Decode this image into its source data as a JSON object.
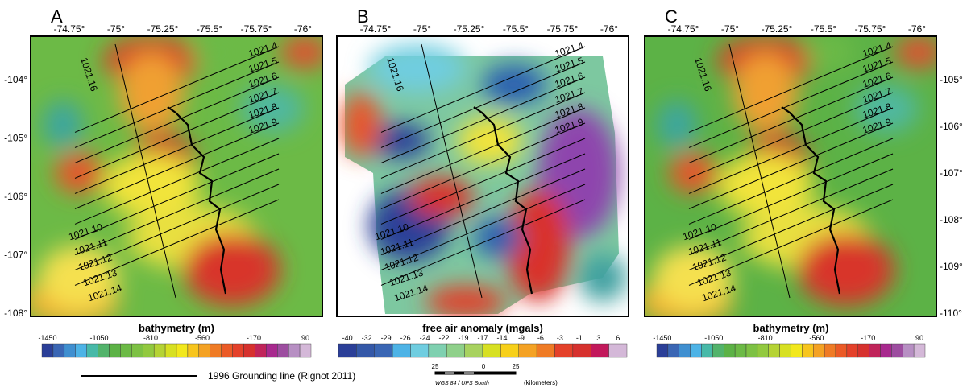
{
  "panels": [
    {
      "letter": "A",
      "lon_labels": [
        "-74.75°",
        "-75°",
        "-75.25°",
        "-75.5°",
        "-75.75°",
        "-76°"
      ],
      "lat_labels": [
        "-104°",
        "-105°",
        "-106°",
        "-107°",
        "-108°"
      ],
      "line_labels": [
        "1021.4",
        "1021.5",
        "1021.6",
        "1021.7",
        "1021.8",
        "1021.9",
        "1021.10",
        "1021.11",
        "1021.12",
        "1021.13",
        "1021.14"
      ],
      "tie_label": "1021.16",
      "colorbar": {
        "title": "bathymetry (m)",
        "ticks": [
          -1450,
          -1050,
          -810,
          -560,
          -170,
          90
        ],
        "colors": [
          "#2b3f98",
          "#3a66b4",
          "#3f8fd0",
          "#4db3e6",
          "#47b9a8",
          "#52b36b",
          "#5cb246",
          "#6cba46",
          "#7dc144",
          "#92c93f",
          "#b5d334",
          "#d7e022",
          "#f2e81c",
          "#f7c51d",
          "#f4a224",
          "#ef7b25",
          "#eb5a26",
          "#e4412a",
          "#d6312e",
          "#c0245a",
          "#a8298e",
          "#9d4da0",
          "#b78fc3",
          "#d4b8d8"
        ]
      }
    },
    {
      "letter": "B",
      "lon_labels": [
        "-74.75°",
        "-75°",
        "-75.25°",
        "-75.5°",
        "-75.75°",
        "-76°"
      ],
      "line_labels": [
        "1021.4",
        "1021.5",
        "1021.6",
        "1021.7",
        "1021.8",
        "1021.9",
        "1021.10",
        "1021.11",
        "1021.12",
        "1021.13",
        "1021.14"
      ],
      "tie_label": "1021.16",
      "colorbar": {
        "title": "free air anomaly (mgals)",
        "ticks": [
          -40,
          -32,
          -29,
          -26,
          -24,
          -22,
          -19,
          -17,
          -14,
          -9,
          -6,
          -3,
          -1,
          3,
          6
        ],
        "colors": [
          "#2b3f98",
          "#3458a8",
          "#3a66b4",
          "#4db3e6",
          "#6fcde0",
          "#7fd0b0",
          "#8fd08a",
          "#a8d25f",
          "#d7e022",
          "#f7d019",
          "#f4a224",
          "#ef7b25",
          "#e4412a",
          "#d6312e",
          "#c2185b",
          "#d4b8d8"
        ]
      }
    },
    {
      "letter": "C",
      "lon_labels": [
        "-74.75°",
        "-75°",
        "-75.25°",
        "-75.5°",
        "-75.75°",
        "-76°"
      ],
      "lat_labels": [
        "-105°",
        "-106°",
        "-107°",
        "-108°",
        "-109°",
        "-110°"
      ],
      "line_labels": [
        "1021.4",
        "1021.5",
        "1021.6",
        "1021.7",
        "1021.8",
        "1021.9",
        "1021.10",
        "1021.11",
        "1021.12",
        "1021.13",
        "1021.14"
      ],
      "tie_label": "1021.16",
      "colorbar": {
        "title": "bathymetry (m)",
        "ticks": [
          -1450,
          -1050,
          -810,
          -560,
          -170,
          90
        ],
        "colors": [
          "#2b3f98",
          "#3a66b4",
          "#3f8fd0",
          "#4db3e6",
          "#47b9a8",
          "#52b36b",
          "#5cb246",
          "#6cba46",
          "#7dc144",
          "#92c93f",
          "#b5d334",
          "#d7e022",
          "#f2e81c",
          "#f7c51d",
          "#f4a224",
          "#ef7b25",
          "#eb5a26",
          "#e4412a",
          "#d6312e",
          "#c0245a",
          "#a8298e",
          "#9d4da0",
          "#b78fc3",
          "#d4b8d8"
        ]
      }
    }
  ],
  "legend": {
    "grounding_line": "1996 Grounding line (Rignot 2011)"
  },
  "scale_bar": {
    "labels": [
      "25",
      "0",
      "25"
    ],
    "unit": "(kilometers)",
    "projection": "WGS 84 / UPS South"
  }
}
